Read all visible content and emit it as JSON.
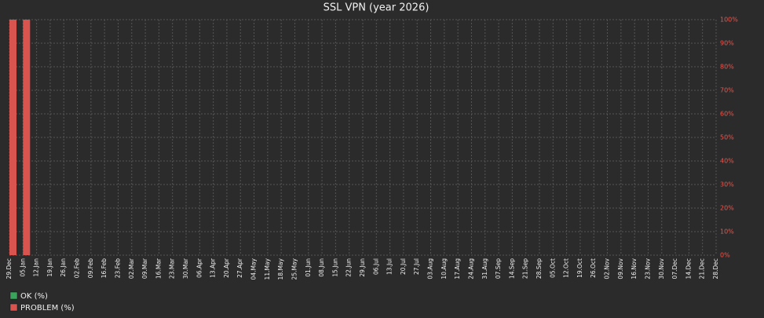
{
  "chart_data": {
    "type": "bar",
    "title": "SSL VPN (year 2026)",
    "stacked": true,
    "grid": true,
    "yaxis_position": "right",
    "legend_position": "bottom-left",
    "categories": [
      "29.Dec",
      "05.Jan",
      "12.Jan",
      "19.Jan",
      "26.Jan",
      "02.Feb",
      "09.Feb",
      "16.Feb",
      "23.Feb",
      "02.Mar",
      "09.Mar",
      "16.Mar",
      "23.Mar",
      "30.Mar",
      "06.Apr",
      "13.Apr",
      "20.Apr",
      "27.Apr",
      "04.May",
      "11.May",
      "18.May",
      "25.May",
      "01.Jun",
      "08.Jun",
      "15.Jun",
      "22.Jun",
      "29.Jun",
      "06.Jul",
      "13.Jul",
      "20.Jul",
      "27.Jul",
      "03.Aug",
      "10.Aug",
      "17.Aug",
      "24.Aug",
      "31.Aug",
      "07.Sep",
      "14.Sep",
      "21.Sep",
      "28.Sep",
      "05.Oct",
      "12.Oct",
      "19.Oct",
      "26.Oct",
      "02.Nov",
      "09.Nov",
      "16.Nov",
      "23.Nov",
      "30.Nov",
      "07.Dec",
      "14.Dec",
      "21.Dec",
      "28.Dec"
    ],
    "series": [
      {
        "name": "OK (%)",
        "color": "#3aa45c",
        "values": [
          0,
          0,
          null,
          null,
          null,
          null,
          null,
          null,
          null,
          null,
          null,
          null,
          null,
          null,
          null,
          null,
          null,
          null,
          null,
          null,
          null,
          null,
          null,
          null,
          null,
          null,
          null,
          null,
          null,
          null,
          null,
          null,
          null,
          null,
          null,
          null,
          null,
          null,
          null,
          null,
          null,
          null,
          null,
          null,
          null,
          null,
          null,
          null,
          null,
          null,
          null,
          null,
          null
        ]
      },
      {
        "name": "PROBLEM (%)",
        "color": "#d9534f",
        "values": [
          100,
          100,
          null,
          null,
          null,
          null,
          null,
          null,
          null,
          null,
          null,
          null,
          null,
          null,
          null,
          null,
          null,
          null,
          null,
          null,
          null,
          null,
          null,
          null,
          null,
          null,
          null,
          null,
          null,
          null,
          null,
          null,
          null,
          null,
          null,
          null,
          null,
          null,
          null,
          null,
          null,
          null,
          null,
          null,
          null,
          null,
          null,
          null,
          null,
          null,
          null,
          null,
          null
        ]
      }
    ],
    "ylim": [
      0,
      100
    ],
    "yticks": [
      {
        "value": 0,
        "label": "0%"
      },
      {
        "value": 10,
        "label": "10%"
      },
      {
        "value": 20,
        "label": "20%"
      },
      {
        "value": 30,
        "label": "30%"
      },
      {
        "value": 40,
        "label": "40%"
      },
      {
        "value": 50,
        "label": "50%"
      },
      {
        "value": 60,
        "label": "60%"
      },
      {
        "value": 70,
        "label": "70%"
      },
      {
        "value": 80,
        "label": "80%"
      },
      {
        "value": 90,
        "label": "90%"
      },
      {
        "value": 100,
        "label": "100%"
      }
    ]
  }
}
